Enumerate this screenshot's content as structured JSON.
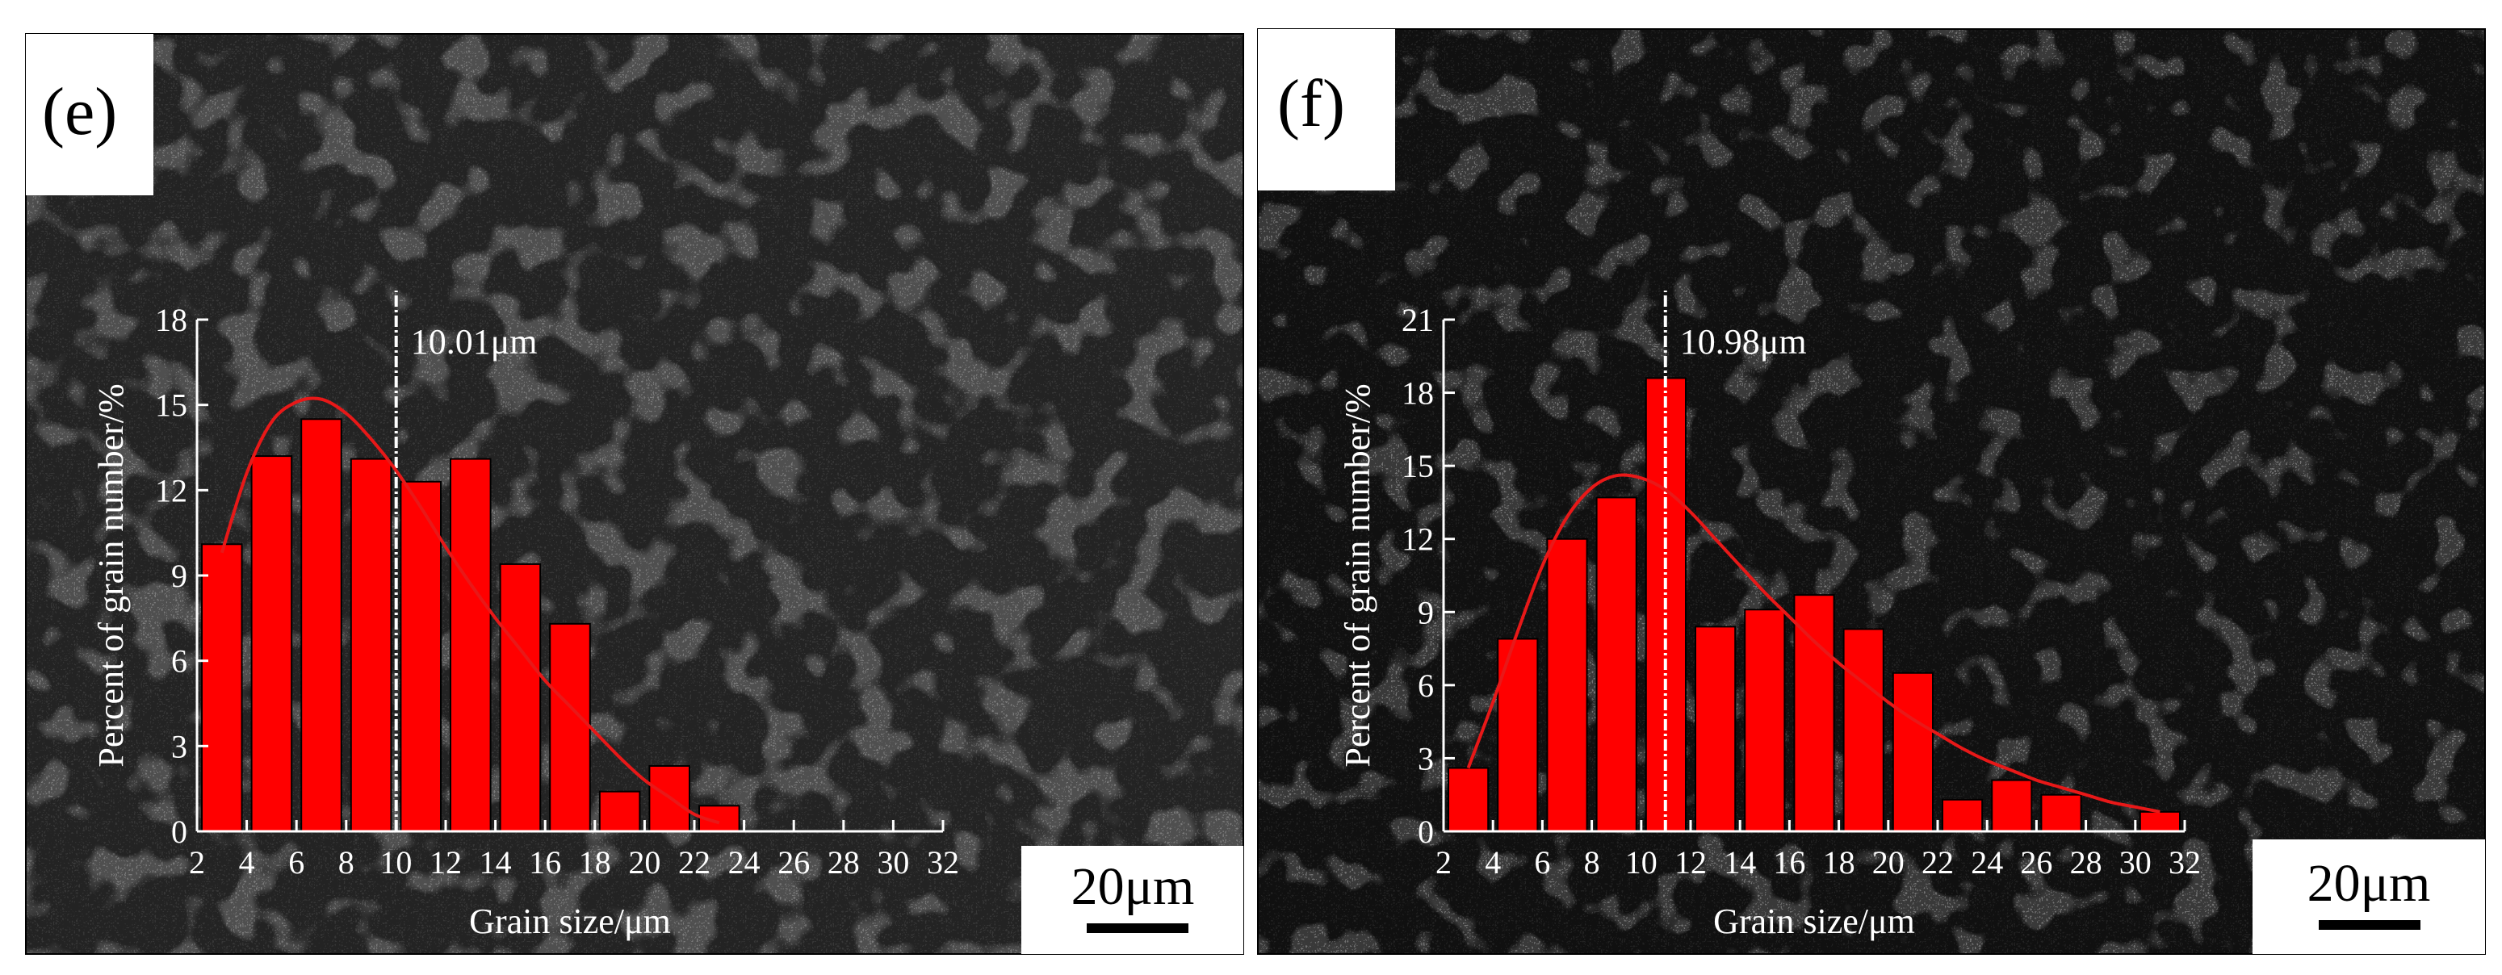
{
  "panels": [
    {
      "label": "(e)",
      "scale_bar": "20μm",
      "colors": {
        "bar": "#ff0000",
        "fit": "#e81818",
        "mean_line": "#ffffff",
        "axis": "#ffffff",
        "text": "#ffffff"
      },
      "chart_data": {
        "type": "bar",
        "title": "",
        "xlabel": "Grain size/μm",
        "ylabel": "Percent of grain number/%",
        "xlim": [
          2,
          32
        ],
        "ylim": [
          0,
          18
        ],
        "xticks": [
          2,
          4,
          6,
          8,
          10,
          12,
          14,
          16,
          18,
          20,
          22,
          24,
          26,
          28,
          30,
          32
        ],
        "yticks": [
          0,
          3,
          6,
          9,
          12,
          15,
          18
        ],
        "bin_width": 2,
        "bin_centers": [
          3,
          5,
          7,
          9,
          11,
          13,
          15,
          17,
          19,
          21,
          23
        ],
        "values": [
          10.1,
          13.2,
          14.5,
          13.1,
          12.3,
          13.1,
          9.4,
          7.3,
          1.4,
          2.3,
          0.9
        ],
        "fit_curve": {
          "x": [
            3,
            4,
            5,
            6,
            7,
            8,
            9,
            10,
            11,
            12,
            13,
            14,
            15,
            16,
            17,
            18,
            19,
            20,
            21,
            22,
            23
          ],
          "y": [
            9.8,
            12.6,
            14.4,
            15.1,
            15.2,
            14.7,
            13.8,
            12.7,
            11.4,
            10.0,
            8.7,
            7.5,
            6.4,
            5.3,
            4.4,
            3.5,
            2.6,
            1.8,
            1.2,
            0.6,
            0.3
          ]
        },
        "mean_line": {
          "x": 10.01,
          "label": "10.01μm"
        }
      }
    },
    {
      "label": "(f)",
      "scale_bar": "20μm",
      "colors": {
        "bar": "#ff0000",
        "fit": "#e81818",
        "mean_line": "#ffffff",
        "axis": "#ffffff",
        "text": "#ffffff"
      },
      "chart_data": {
        "type": "bar",
        "title": "",
        "xlabel": "Grain size/μm",
        "ylabel": "Percent of grain number/%",
        "xlim": [
          2,
          32
        ],
        "ylim": [
          0,
          21
        ],
        "xticks": [
          2,
          4,
          6,
          8,
          10,
          12,
          14,
          16,
          18,
          20,
          22,
          24,
          26,
          28,
          30,
          32
        ],
        "yticks": [
          0,
          3,
          6,
          9,
          12,
          15,
          18,
          21
        ],
        "bin_width": 2,
        "bin_centers": [
          3,
          5,
          7,
          9,
          11,
          13,
          15,
          17,
          19,
          21,
          23,
          25,
          27,
          31
        ],
        "values": [
          2.6,
          7.9,
          12.0,
          13.7,
          18.6,
          8.4,
          9.1,
          9.7,
          8.3,
          6.5,
          1.3,
          2.1,
          1.5,
          0.8
        ],
        "fit_curve": {
          "x": [
            3,
            4,
            5,
            6,
            7,
            8,
            9,
            10,
            11,
            12,
            13,
            14,
            15,
            16,
            17,
            18,
            19,
            20,
            21,
            22,
            23,
            24,
            25,
            26,
            27,
            28,
            29,
            30,
            31
          ],
          "y": [
            2.6,
            5.3,
            8.2,
            10.9,
            12.9,
            14.1,
            14.6,
            14.5,
            14.0,
            13.1,
            12.0,
            10.9,
            9.8,
            8.8,
            7.8,
            6.9,
            6.1,
            5.3,
            4.6,
            4.0,
            3.4,
            2.9,
            2.5,
            2.1,
            1.8,
            1.5,
            1.2,
            1.0,
            0.8
          ]
        },
        "mean_line": {
          "x": 10.98,
          "label": "10.98μm"
        }
      }
    }
  ]
}
